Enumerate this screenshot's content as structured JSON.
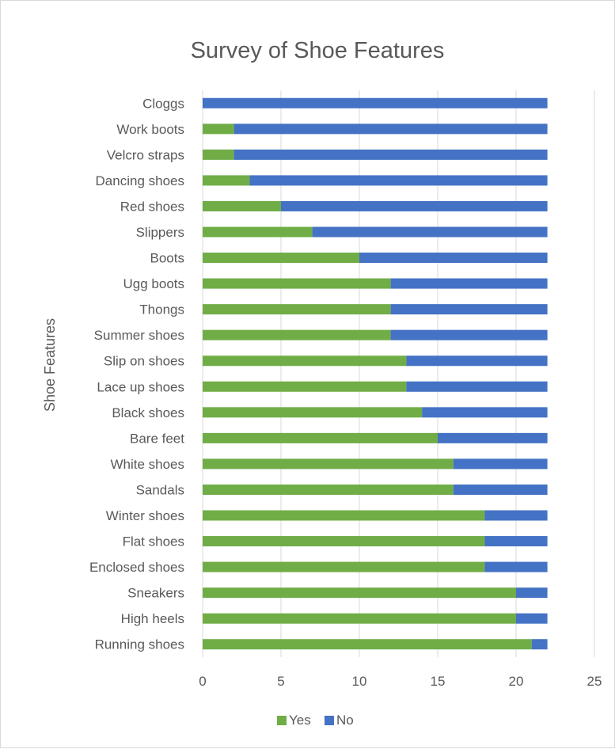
{
  "chart_data": {
    "type": "bar",
    "orientation": "horizontal",
    "stacked": true,
    "title": "Survey of Shoe Features",
    "ylabel": "Shoe  Features",
    "xlabel": "",
    "xlim": [
      0,
      25
    ],
    "x_ticks": [
      0,
      5,
      10,
      15,
      20,
      25
    ],
    "grid": true,
    "legend_position": "bottom",
    "categories": [
      "Running shoes",
      "High heels",
      "Sneakers",
      "Enclosed shoes",
      "Flat shoes",
      "Winter shoes",
      "Sandals",
      "White shoes",
      "Bare feet",
      "Black shoes",
      "Lace up shoes",
      "Slip on shoes",
      "Summer shoes",
      "Thongs",
      "Ugg boots",
      "Boots",
      "Slippers",
      "Red shoes",
      "Dancing shoes",
      "Velcro straps",
      "Work boots",
      "Cloggs"
    ],
    "series": [
      {
        "name": "Yes",
        "color": "#70ad47",
        "values": [
          21,
          20,
          20,
          18,
          18,
          18,
          16,
          16,
          15,
          14,
          13,
          13,
          12,
          12,
          12,
          10,
          7,
          5,
          3,
          2,
          2,
          0
        ]
      },
      {
        "name": "No",
        "color": "#4472c4",
        "values": [
          1,
          2,
          2,
          4,
          4,
          4,
          6,
          6,
          7,
          8,
          9,
          9,
          10,
          10,
          10,
          12,
          15,
          17,
          19,
          20,
          20,
          22
        ]
      }
    ]
  }
}
